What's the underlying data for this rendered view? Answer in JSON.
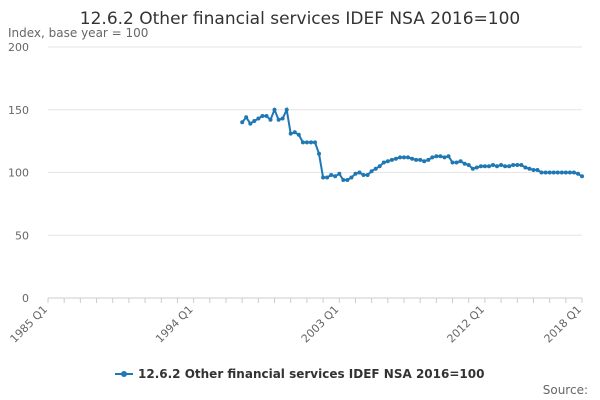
{
  "chart_data": {
    "type": "line",
    "title": "12.6.2 Other financial services IDEF NSA 2016=100",
    "subtitle": "Index, base year = 100",
    "ylim": [
      0,
      200
    ],
    "yticks": [
      0,
      50,
      100,
      150,
      200
    ],
    "xticks": [
      "1985 Q1",
      "1994 Q1",
      "2003 Q1",
      "2012 Q1",
      "2018 Q1"
    ],
    "x_range": [
      "1985 Q1",
      "2018 Q1"
    ],
    "grid": true,
    "legend_position": "bottom",
    "source": "Source:",
    "series": [
      {
        "name": "12.6.2 Other financial services IDEF NSA 2016=100",
        "color": "#1f77b4",
        "points": [
          [
            "1997 Q1",
            140
          ],
          [
            "1997 Q2",
            144
          ],
          [
            "1997 Q3",
            139
          ],
          [
            "1997 Q4",
            141
          ],
          [
            "1998 Q1",
            143
          ],
          [
            "1998 Q2",
            145
          ],
          [
            "1998 Q3",
            145
          ],
          [
            "1998 Q4",
            142
          ],
          [
            "1999 Q1",
            150
          ],
          [
            "1999 Q2",
            142
          ],
          [
            "1999 Q3",
            143
          ],
          [
            "1999 Q4",
            150
          ],
          [
            "2000 Q1",
            131
          ],
          [
            "2000 Q2",
            132
          ],
          [
            "2000 Q3",
            130
          ],
          [
            "2000 Q4",
            124
          ],
          [
            "2001 Q1",
            124
          ],
          [
            "2001 Q2",
            124
          ],
          [
            "2001 Q3",
            124
          ],
          [
            "2001 Q4",
            115
          ],
          [
            "2002 Q1",
            96
          ],
          [
            "2002 Q2",
            96
          ],
          [
            "2002 Q3",
            98
          ],
          [
            "2002 Q4",
            97
          ],
          [
            "2003 Q1",
            99
          ],
          [
            "2003 Q2",
            94
          ],
          [
            "2003 Q3",
            94
          ],
          [
            "2003 Q4",
            96
          ],
          [
            "2004 Q1",
            99
          ],
          [
            "2004 Q2",
            100
          ],
          [
            "2004 Q3",
            98
          ],
          [
            "2004 Q4",
            98
          ],
          [
            "2005 Q1",
            101
          ],
          [
            "2005 Q2",
            103
          ],
          [
            "2005 Q3",
            105
          ],
          [
            "2005 Q4",
            108
          ],
          [
            "2006 Q1",
            109
          ],
          [
            "2006 Q2",
            110
          ],
          [
            "2006 Q3",
            111
          ],
          [
            "2006 Q4",
            112
          ],
          [
            "2007 Q1",
            112
          ],
          [
            "2007 Q2",
            112
          ],
          [
            "2007 Q3",
            111
          ],
          [
            "2007 Q4",
            110
          ],
          [
            "2008 Q1",
            110
          ],
          [
            "2008 Q2",
            109
          ],
          [
            "2008 Q3",
            110
          ],
          [
            "2008 Q4",
            112
          ],
          [
            "2009 Q1",
            113
          ],
          [
            "2009 Q2",
            113
          ],
          [
            "2009 Q3",
            112
          ],
          [
            "2009 Q4",
            113
          ],
          [
            "2010 Q1",
            108
          ],
          [
            "2010 Q2",
            108
          ],
          [
            "2010 Q3",
            109
          ],
          [
            "2010 Q4",
            107
          ],
          [
            "2011 Q1",
            106
          ],
          [
            "2011 Q2",
            103
          ],
          [
            "2011 Q3",
            104
          ],
          [
            "2011 Q4",
            105
          ],
          [
            "2012 Q1",
            105
          ],
          [
            "2012 Q2",
            105
          ],
          [
            "2012 Q3",
            106
          ],
          [
            "2012 Q4",
            105
          ],
          [
            "2013 Q1",
            106
          ],
          [
            "2013 Q2",
            105
          ],
          [
            "2013 Q3",
            105
          ],
          [
            "2013 Q4",
            106
          ],
          [
            "2014 Q1",
            106
          ],
          [
            "2014 Q2",
            106
          ],
          [
            "2014 Q3",
            104
          ],
          [
            "2014 Q4",
            103
          ],
          [
            "2015 Q1",
            102
          ],
          [
            "2015 Q2",
            102
          ],
          [
            "2015 Q3",
            100
          ],
          [
            "2015 Q4",
            100
          ],
          [
            "2016 Q1",
            100
          ],
          [
            "2016 Q2",
            100
          ],
          [
            "2016 Q3",
            100
          ],
          [
            "2016 Q4",
            100
          ],
          [
            "2017 Q1",
            100
          ],
          [
            "2017 Q2",
            100
          ],
          [
            "2017 Q3",
            100
          ],
          [
            "2017 Q4",
            99
          ],
          [
            "2018 Q1",
            97
          ]
        ]
      }
    ]
  }
}
